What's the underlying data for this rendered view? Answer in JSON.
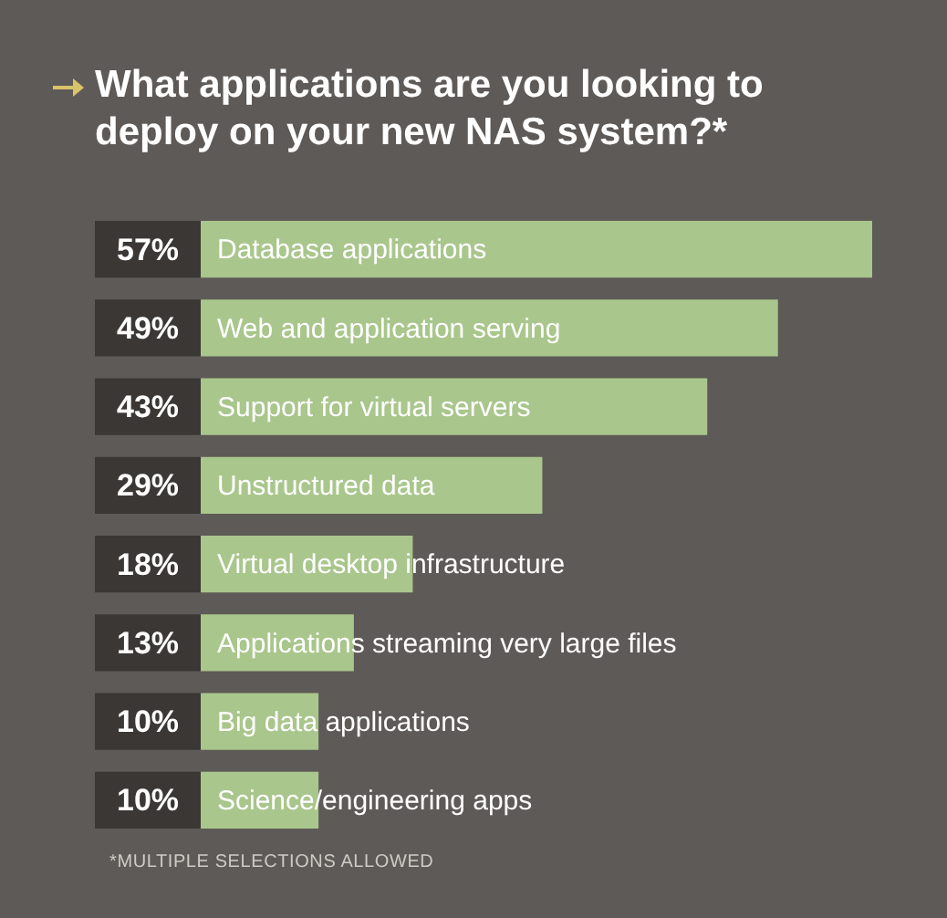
{
  "chart_data": {
    "type": "bar",
    "orientation": "horizontal",
    "title": "What applications are you looking to deploy on your new NAS system?*",
    "categories": [
      "Database applications",
      "Web and application serving",
      "Support for virtual servers",
      "Unstructured data",
      "Virtual desktop infrastructure",
      "Applications streaming very large files",
      "Big data applications",
      "Science/engineering apps"
    ],
    "values": [
      57,
      49,
      43,
      29,
      18,
      13,
      10,
      10
    ],
    "value_labels": [
      "57%",
      "49%",
      "43%",
      "29%",
      "18%",
      "13%",
      "10%",
      "10%"
    ],
    "color": "#a9c68c",
    "annotations": [
      "*MULTIPLE SELECTIONS ALLOWED"
    ],
    "legend": false
  }
}
